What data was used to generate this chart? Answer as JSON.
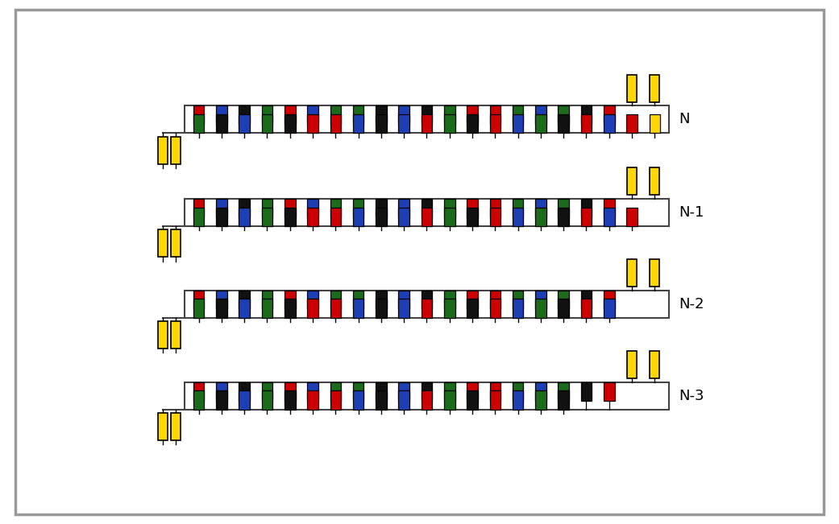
{
  "background_color": "#ffffff",
  "border_color": "#444444",
  "fig_width": 10.41,
  "fig_height": 6.51,
  "dpi": 100,
  "yellow_color": "#FFD700",
  "red_color": "#CC0000",
  "blue_color": "#1C3FB5",
  "green_color": "#1A6B1A",
  "black_color": "#111111",
  "rows": [
    {
      "label": "N",
      "upper_count": 21,
      "lower_count": 21
    },
    {
      "label": "N-1",
      "upper_count": 21,
      "lower_count": 20
    },
    {
      "label": "N-2",
      "upper_count": 21,
      "lower_count": 19
    },
    {
      "label": "N-3",
      "upper_count": 21,
      "lower_count": 17
    }
  ],
  "colors_upper": [
    "red",
    "blue",
    "black",
    "green",
    "red",
    "blue",
    "green",
    "green",
    "black",
    "blue",
    "black",
    "green",
    "red",
    "red",
    "green",
    "blue",
    "green",
    "black",
    "red",
    "black",
    "yellow"
  ],
  "colors_lower": [
    "green",
    "black",
    "blue",
    "green",
    "black",
    "red",
    "red",
    "blue",
    "black",
    "blue",
    "red",
    "green",
    "black",
    "red",
    "blue",
    "green",
    "black",
    "red",
    "blue",
    "red",
    "yellow"
  ]
}
